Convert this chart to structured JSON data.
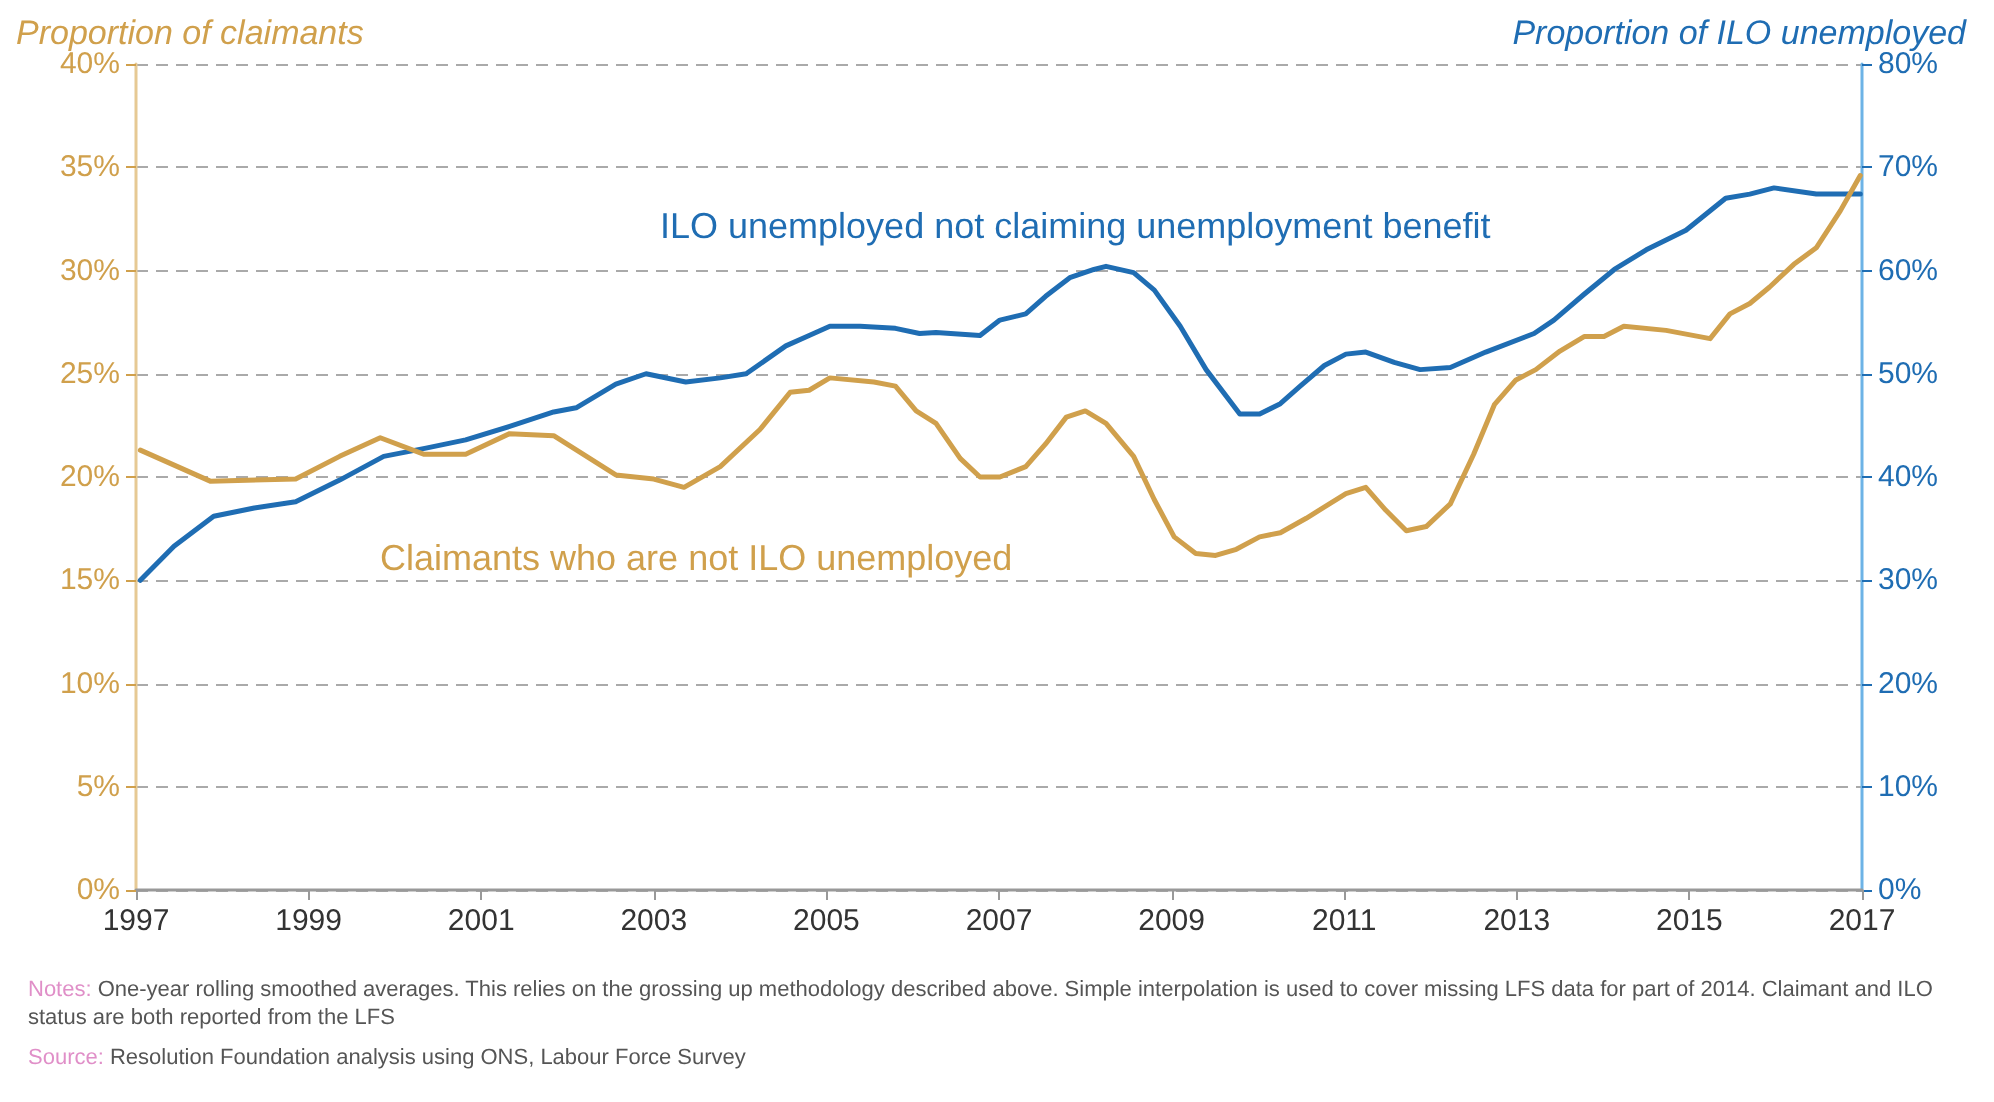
{
  "chart_data": {
    "type": "line",
    "ylabel": "Proportion of claimants",
    "y2label": "Proportion of ILO unemployed",
    "xlim": [
      1997,
      2017
    ],
    "xticks": [
      1997,
      1999,
      2001,
      2003,
      2005,
      2007,
      2009,
      2011,
      2013,
      2015,
      2017
    ],
    "ylim": [
      0,
      40
    ],
    "yticks": [
      {
        "value": 0,
        "label": "0%"
      },
      {
        "value": 5,
        "label": "5%"
      },
      {
        "value": 10,
        "label": "10%"
      },
      {
        "value": 15,
        "label": "15%"
      },
      {
        "value": 20,
        "label": "20%"
      },
      {
        "value": 25,
        "label": "25%"
      },
      {
        "value": 30,
        "label": "30%"
      },
      {
        "value": 35,
        "label": "35%"
      },
      {
        "value": 40,
        "label": "40%"
      }
    ],
    "y2lim": [
      0,
      80
    ],
    "y2ticks": [
      {
        "value": 0,
        "label": "0%"
      },
      {
        "value": 10,
        "label": "10%"
      },
      {
        "value": 20,
        "label": "20%"
      },
      {
        "value": 30,
        "label": "30%"
      },
      {
        "value": 40,
        "label": "40%"
      },
      {
        "value": 50,
        "label": "50%"
      },
      {
        "value": 60,
        "label": "60%"
      },
      {
        "value": 70,
        "label": "70%"
      },
      {
        "value": 80,
        "label": "80%"
      }
    ],
    "grid": "y",
    "marker": "none",
    "line_style": "solid",
    "series": [
      {
        "name": "ILO unemployed not claiming unemployment benefit",
        "color": "#1f6db3",
        "axis": "y2",
        "x": [
          1997.05,
          1997.44,
          1997.9,
          1998.37,
          1998.85,
          1999.36,
          1999.87,
          2000.36,
          2000.82,
          2001.33,
          2001.84,
          2002.1,
          2002.56,
          2002.91,
          2003.37,
          2003.77,
          2004.07,
          2004.53,
          2004.8,
          2005.04,
          2005.39,
          2005.8,
          2006.08,
          2006.27,
          2006.78,
          2007.01,
          2007.31,
          2007.54,
          2007.82,
          2008.1,
          2008.24,
          2008.56,
          2008.8,
          2009.1,
          2009.4,
          2009.79,
          2010.02,
          2010.26,
          2010.49,
          2010.77,
          2011.02,
          2011.25,
          2011.58,
          2011.88,
          2012.23,
          2012.64,
          2013.2,
          2013.43,
          2013.78,
          2014.13,
          2014.5,
          2014.96,
          2015.42,
          2015.7,
          2015.98,
          2016.47,
          2016.98
        ],
        "values": [
          30.0,
          33.3,
          36.2,
          37.0,
          37.6,
          39.7,
          42.0,
          42.8,
          43.6,
          44.9,
          46.3,
          46.7,
          49.0,
          50.0,
          49.2,
          49.6,
          50.0,
          52.7,
          53.7,
          54.6,
          54.6,
          54.4,
          53.9,
          54.0,
          53.7,
          55.2,
          55.8,
          57.5,
          59.3,
          60.1,
          60.4,
          59.8,
          58.1,
          54.6,
          50.4,
          46.1,
          46.1,
          47.1,
          48.8,
          50.8,
          51.9,
          52.1,
          51.1,
          50.4,
          50.6,
          52.1,
          53.9,
          55.2,
          57.7,
          60.1,
          62.0,
          63.9,
          67.0,
          67.4,
          68.0,
          67.4,
          67.4
        ]
      },
      {
        "name": "Claimants who are not ILO unemployed",
        "color": "#d0a04c",
        "x": [
          1997.05,
          1997.86,
          1998.85,
          1999.36,
          1999.83,
          2000.34,
          2000.82,
          2001.33,
          2001.84,
          2002.56,
          2003.0,
          2003.35,
          2003.77,
          2004.23,
          2004.58,
          2004.8,
          2005.04,
          2005.55,
          2005.8,
          2006.04,
          2006.27,
          2006.55,
          2006.78,
          2007.01,
          2007.31,
          2007.54,
          2007.78,
          2008.0,
          2008.24,
          2008.56,
          2008.8,
          2009.03,
          2009.28,
          2009.51,
          2009.75,
          2010.02,
          2010.26,
          2010.56,
          2011.02,
          2011.25,
          2011.48,
          2011.72,
          2011.95,
          2012.23,
          2012.5,
          2012.74,
          2012.99,
          2013.22,
          2013.5,
          2013.78,
          2014.01,
          2014.24,
          2014.73,
          2015.24,
          2015.47,
          2015.7,
          2015.93,
          2016.21,
          2016.47,
          2016.75,
          2016.98
        ],
        "values": [
          21.3,
          19.8,
          19.9,
          21.0,
          21.9,
          21.1,
          21.1,
          22.1,
          22.0,
          20.1,
          19.9,
          19.5,
          20.5,
          22.3,
          24.1,
          24.2,
          24.8,
          24.6,
          24.4,
          23.2,
          22.6,
          20.9,
          20.0,
          20.0,
          20.5,
          21.6,
          22.9,
          23.2,
          22.6,
          21.0,
          18.9,
          17.1,
          16.3,
          16.2,
          16.5,
          17.1,
          17.3,
          18.0,
          19.2,
          19.5,
          18.4,
          17.4,
          17.6,
          18.7,
          21.1,
          23.5,
          24.7,
          25.2,
          26.1,
          26.8,
          26.8,
          27.3,
          27.1,
          26.7,
          27.9,
          28.4,
          29.2,
          30.3,
          31.1,
          32.9,
          34.6
        ]
      }
    ],
    "annotations": [
      "Notes: One-year rolling smoothed averages. This relies on the grossing up methodology described above. Simple interpolation is used to cover missing LFS data for part of 2014. Claimant and ILO status are both reported from the LFS",
      "Source: Resolution Foundation analysis using ONS, Labour Force Survey"
    ]
  }
}
